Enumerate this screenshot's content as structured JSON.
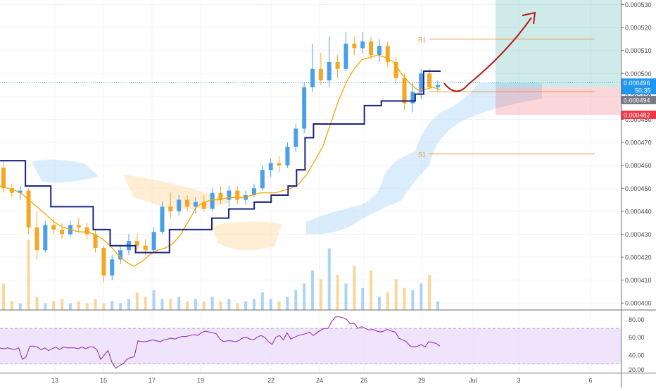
{
  "chart_data": [
    {
      "type": "candlestick",
      "title": "",
      "x_tick_labels": [
        "13",
        "15",
        "17",
        "19",
        "22",
        "24",
        "26",
        "29",
        "Jul",
        "3",
        "6"
      ],
      "y_axis": {
        "range": [
          0.000397,
          0.000532
        ],
        "tick_values": [
          0.0004,
          0.00041,
          0.00042,
          0.00043,
          0.00044,
          0.00045,
          0.00046,
          0.00047,
          0.00048,
          0.00049,
          0.0005,
          0.00051,
          0.00052,
          0.00053
        ],
        "tick_labels": [
          "0.000400",
          "0.000410",
          "0.000420",
          "0.000430",
          "0.000440",
          "0.000450",
          "0.000460",
          "0.000470",
          "0.000480",
          "0.000490",
          "0.000500",
          "0.000510",
          "0.000520",
          "0.000530"
        ]
      },
      "price_badges": [
        {
          "value": 0.000496,
          "label": "0.000496",
          "color": "#2196f3"
        },
        {
          "value": 0.0004945,
          "label": "50:35",
          "color": "#2196f3"
        },
        {
          "value": 0.000494,
          "label": "0.000494",
          "color": "#787b86"
        },
        {
          "value": 0.000482,
          "label": "0.000482",
          "color": "#f23645"
        }
      ],
      "pivot_levels": [
        {
          "label": "R1",
          "value": 0.000515
        },
        {
          "label": "P",
          "value": 0.000492
        },
        {
          "label": "S1",
          "value": 0.000465
        }
      ],
      "position": {
        "entry": 0.000494,
        "target": 0.000532,
        "stop": 0.000482
      },
      "series": [
        {
          "name": "",
          "color": "#f7a600",
          "values": [
            0.000451,
            0.00045,
            0.000449,
            0.000447,
            0.000444,
            0.000441,
            0.000438,
            0.000435,
            0.000433,
            0.000432,
            0.000431,
            0.000431,
            0.00043,
            0.000428,
            0.000425,
            0.000421,
            0.000418,
            0.000416,
            0.000418,
            0.000421,
            0.000423,
            0.000424,
            0.000426,
            0.00043,
            0.000436,
            0.000442,
            0.000444,
            0.000445,
            0.000445,
            0.000446,
            0.000446,
            0.000446,
            0.000447,
            0.000448,
            0.000448,
            0.000448,
            0.000449,
            0.00045,
            0.000452,
            0.000456,
            0.000462,
            0.000468,
            0.000478,
            0.000488,
            0.000496,
            0.000502,
            0.000506,
            0.000507,
            0.000508,
            0.000507,
            0.000505,
            0.0005,
            0.000496,
            0.000493,
            0.000493,
            0.000494,
            0.000493
          ]
        },
        {
          "name": "",
          "color": "#1a237e",
          "values": [
            0.000462,
            0.000462,
            0.000462,
            0.000451,
            0.000451,
            0.000451,
            0.000442,
            0.000442,
            0.000442,
            0.000442,
            0.000442,
            0.000432,
            0.000432,
            0.000425,
            0.000425,
            0.000425,
            0.000422,
            0.000422,
            0.000422,
            0.000422,
            0.000432,
            0.000432,
            0.000432,
            0.000432,
            0.000432,
            0.000437,
            0.000437,
            0.000441,
            0.000441,
            0.000441,
            0.000444,
            0.000444,
            0.000447,
            0.000447,
            0.000451,
            0.000458,
            0.000472,
            0.000478,
            0.000478,
            0.000478,
            0.000478,
            0.000478,
            0.000478,
            0.000486,
            0.000486,
            0.000488,
            0.000488,
            0.000488,
            0.000488,
            0.000491,
            0.000501,
            0.000501,
            0.000501
          ]
        }
      ],
      "candles": [
        [
          0.000459,
          0.000462,
          0.000448,
          0.00045
        ],
        [
          0.00045,
          0.000452,
          0.000446,
          0.000448
        ],
        [
          0.000448,
          0.000451,
          0.000445,
          0.000449
        ],
        [
          0.000449,
          0.00045,
          0.00043,
          0.000433
        ],
        [
          0.000433,
          0.00044,
          0.000419,
          0.000423
        ],
        [
          0.000423,
          0.000436,
          0.000422,
          0.000434
        ],
        [
          0.000434,
          0.000437,
          0.00043,
          0.000432
        ],
        [
          0.000432,
          0.000435,
          0.000428,
          0.00043
        ],
        [
          0.00043,
          0.000436,
          0.000429,
          0.000434
        ],
        [
          0.000434,
          0.000437,
          0.000431,
          0.000433
        ],
        [
          0.000433,
          0.000435,
          0.000428,
          0.00043
        ],
        [
          0.00043,
          0.000432,
          0.000422,
          0.000424
        ],
        [
          0.000424,
          0.000425,
          0.000409,
          0.000412
        ],
        [
          0.000412,
          0.000421,
          0.00041,
          0.000419
        ],
        [
          0.000419,
          0.000425,
          0.000417,
          0.000423
        ],
        [
          0.000423,
          0.00043,
          0.000421,
          0.000427
        ],
        [
          0.000427,
          0.00043,
          0.000423,
          0.000425
        ],
        [
          0.000425,
          0.000428,
          0.000421,
          0.000423
        ],
        [
          0.000423,
          0.000433,
          0.000422,
          0.000431
        ],
        [
          0.000431,
          0.000444,
          0.00043,
          0.000442
        ],
        [
          0.000442,
          0.000448,
          0.000437,
          0.00044
        ],
        [
          0.00044,
          0.000447,
          0.000438,
          0.000445
        ],
        [
          0.000445,
          0.000447,
          0.00044,
          0.000442
        ],
        [
          0.000442,
          0.000446,
          0.000439,
          0.000444
        ],
        [
          0.000444,
          0.000447,
          0.00044,
          0.000441
        ],
        [
          0.000441,
          0.00045,
          0.00044,
          0.000448
        ],
        [
          0.000448,
          0.000451,
          0.000443,
          0.000445
        ],
        [
          0.000445,
          0.000451,
          0.000442,
          0.000449
        ],
        [
          0.000449,
          0.000451,
          0.000443,
          0.000445
        ],
        [
          0.000445,
          0.000449,
          0.000443,
          0.000447
        ],
        [
          0.000447,
          0.000452,
          0.000446,
          0.00045
        ],
        [
          0.00045,
          0.00046,
          0.000449,
          0.000458
        ],
        [
          0.000458,
          0.000463,
          0.000455,
          0.000461
        ],
        [
          0.000461,
          0.000464,
          0.000457,
          0.00046
        ],
        [
          0.00046,
          0.00047,
          0.000459,
          0.000468
        ],
        [
          0.000468,
          0.000478,
          0.000466,
          0.000476
        ],
        [
          0.000476,
          0.000496,
          0.000474,
          0.000494
        ],
        [
          0.000494,
          0.000513,
          0.000492,
          0.000502
        ],
        [
          0.000502,
          0.000509,
          0.000495,
          0.000497
        ],
        [
          0.000497,
          0.000516,
          0.000494,
          0.000505
        ],
        [
          0.000505,
          0.000508,
          0.000498,
          0.000502
        ],
        [
          0.000502,
          0.000518,
          0.000501,
          0.000513
        ],
        [
          0.000513,
          0.000516,
          0.000508,
          0.000511
        ],
        [
          0.000511,
          0.000518,
          0.000509,
          0.000514
        ],
        [
          0.000514,
          0.000516,
          0.000506,
          0.000508
        ],
        [
          0.000508,
          0.000515,
          0.000505,
          0.000512
        ],
        [
          0.000512,
          0.000514,
          0.000503,
          0.000505
        ],
        [
          0.000505,
          0.000507,
          0.000496,
          0.000498
        ],
        [
          0.000498,
          0.0005,
          0.000484,
          0.000487
        ],
        [
          0.000487,
          0.000496,
          0.000483,
          0.000492
        ],
        [
          0.000492,
          0.000502,
          0.000489,
          0.0005
        ],
        [
          0.0005,
          0.000502,
          0.000493,
          0.000494
        ],
        [
          0.000494,
          0.000497,
          0.000492,
          0.000495
        ]
      ],
      "volumes": [
        12,
        4,
        3,
        32,
        6,
        3,
        4,
        5,
        3,
        4,
        3,
        5,
        3,
        4,
        3,
        5,
        8,
        6,
        9,
        5,
        5,
        6,
        4,
        5,
        4,
        6,
        4,
        5,
        3,
        4,
        5,
        8,
        5,
        4,
        6,
        9,
        12,
        18,
        14,
        28,
        16,
        12,
        20,
        10,
        18,
        6,
        8,
        14,
        10,
        9,
        12,
        16,
        4
      ]
    },
    {
      "type": "line",
      "title": "",
      "y_axis": {
        "range": [
          20,
          90
        ],
        "tick_values": [
          20,
          40,
          60,
          80
        ],
        "tick_labels": [
          "20.00",
          "40.00",
          "60.00",
          "80.00"
        ]
      },
      "band": [
        30,
        70
      ],
      "series": [
        {
          "name": "",
          "color": "#8e24aa",
          "values": [
            48,
            47,
            48,
            47,
            46,
            48,
            35,
            38,
            50,
            50,
            49,
            46,
            48,
            45,
            47,
            49,
            46,
            49,
            48,
            48,
            48,
            47,
            49,
            47,
            49,
            49,
            46,
            35,
            40,
            45,
            32,
            25,
            28,
            30,
            35,
            37,
            38,
            56,
            55,
            55,
            56,
            57,
            56,
            55,
            57,
            58,
            59,
            58,
            60,
            61,
            61,
            62,
            63,
            62,
            65,
            67,
            66,
            65,
            64,
            58,
            55,
            56,
            56,
            55,
            56,
            59,
            60,
            58,
            57,
            60,
            62,
            60,
            55,
            52,
            60,
            62,
            57,
            65,
            58,
            60,
            62,
            63,
            64,
            66,
            62,
            65,
            68,
            70,
            70,
            78,
            83,
            83,
            82,
            80,
            75,
            76,
            70,
            72,
            70,
            68,
            69,
            67,
            66,
            67,
            69,
            67,
            66,
            59,
            57,
            55,
            50,
            49,
            50,
            52,
            49,
            55,
            54,
            53,
            50
          ]
        }
      ]
    }
  ],
  "x_axis_labels": {
    "tick_labels": [
      "13",
      "15",
      "17",
      "19",
      "22",
      "24",
      "26",
      "29",
      "Jul",
      "3",
      "6"
    ]
  },
  "colors": {
    "up": "#4aa0e8",
    "down": "#f5a623",
    "grid": "#f0f3fa",
    "axis_text": "#4a4a4a",
    "pivot": "#f0933c",
    "cloud": "#bbdefb",
    "cloud_warm": "#ffe0b2",
    "target_zone": "#26a69a",
    "stop_zone": "#f23645",
    "forecast_arrow": "#b71c1c",
    "rsi_line": "#8e24aa",
    "rsi_band": "#e9d7fb"
  }
}
